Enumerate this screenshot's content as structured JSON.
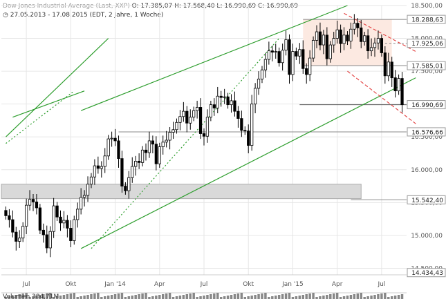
{
  "header": {
    "title": "Dow Jones Industrial Average (Last, XXP)",
    "ohlc": "O: 17.385,07  H: 17.568,40  L: 16.990,69  C: 16.990,69",
    "range": "27.05.2013 - 17.08.2015 (EDT, 2 Jahre, 1 Woche)"
  },
  "chart_data": {
    "type": "candlestick",
    "title": "Dow Jones Industrial Average",
    "y_axis_side": "right",
    "ylim": [
      14400,
      18500
    ],
    "y_ticks": [
      {
        "value": 18500,
        "label": "18.500,00"
      },
      {
        "value": 18000,
        "label": "18.000,00"
      },
      {
        "value": 17500,
        "label": "17.500,00"
      },
      {
        "value": 17000,
        "label": "17.000,00"
      },
      {
        "value": 16500,
        "label": "16.500,00"
      },
      {
        "value": 16000,
        "label": "16.000,00"
      },
      {
        "value": 15500,
        "label": "15.500,00"
      },
      {
        "value": 15000,
        "label": "15.000,00"
      },
      {
        "value": 14500,
        "label": "14.500,00"
      }
    ],
    "x_ticks": [
      {
        "week": 6,
        "label": "Jul"
      },
      {
        "week": 19,
        "label": "Okt"
      },
      {
        "week": 32,
        "label": "Jan '14"
      },
      {
        "week": 45,
        "label": "Apr"
      },
      {
        "week": 58,
        "label": "Jul"
      },
      {
        "week": 71,
        "label": "Okt"
      },
      {
        "week": 84,
        "label": "Jan '15"
      },
      {
        "week": 97,
        "label": "Apr"
      },
      {
        "week": 110,
        "label": "Jul"
      }
    ],
    "weeks": 117,
    "close": [
      15300,
      15240,
      15050,
      14910,
      14960,
      15140,
      15460,
      15550,
      15510,
      15420,
      15080,
      15010,
      14810,
      15060,
      15450,
      15280,
      15190,
      15230,
      15110,
      14920,
      15240,
      15400,
      15580,
      15610,
      15780,
      15890,
      16060,
      16020,
      16050,
      16210,
      16470,
      16480,
      16440,
      16170,
      15750,
      15680,
      15880,
      16050,
      16130,
      16110,
      16300,
      16260,
      16440,
      16390,
      16090,
      16350,
      16420,
      16450,
      16570,
      16610,
      16720,
      16810,
      16890,
      16710,
      16800,
      16900,
      16950,
      16550,
      16510,
      16800,
      16990,
      16940,
      17120,
      17100,
      17110,
      16990,
      17050,
      16890,
      16780,
      16600,
      16590,
      16370,
      17000,
      17240,
      17380,
      17520,
      17680,
      17810,
      17790,
      17800,
      17630,
      17820,
      17980,
      17450,
      17800,
      17730,
      17830,
      17540,
      17450,
      17700,
      17970,
      18100,
      17900,
      18050,
      17690,
      17900,
      18000,
      18130,
      17920,
      18050,
      17960,
      18140,
      18230,
      18160,
      17950,
      18040,
      17810,
      17860,
      17930,
      18000,
      17780,
      17430,
      17640,
      17400,
      17200,
      17390,
      16990
    ]
  },
  "levels": [
    {
      "value": 18288.63,
      "label": "18.288,63",
      "type": "resistance"
    },
    {
      "value": 17925.06,
      "label": "17.925,06",
      "type": "dashed"
    },
    {
      "value": 17585.01,
      "label": "17.585,01",
      "type": "resistance"
    },
    {
      "value": 16990.69,
      "label": "16.990,69",
      "type": "last"
    },
    {
      "value": 16576.66,
      "label": "16.576,66",
      "type": "support"
    },
    {
      "value": 15542.4,
      "label": "15.542,40",
      "type": "support"
    },
    {
      "value": 14434.43,
      "label": "14.434,43",
      "type": "low"
    }
  ],
  "volume": {
    "label": "Volumen",
    "value": "384,71M"
  },
  "colors": {
    "up": "#ffffff",
    "down": "#000000",
    "channel": "#2e9e2e",
    "downtrend": "#e23a3a",
    "grid": "#e6e6e6",
    "zone": "#d9d9d9",
    "box": "#fce9e1"
  }
}
